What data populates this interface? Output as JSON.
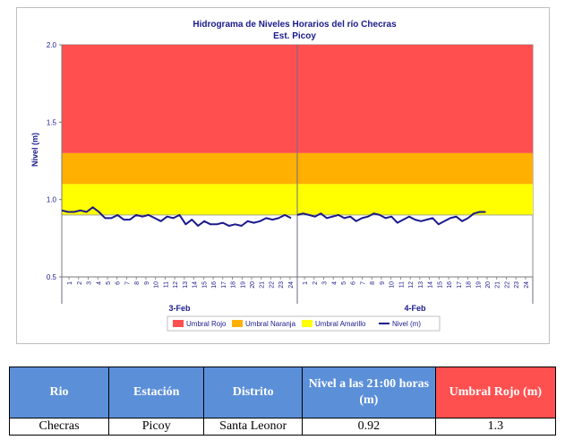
{
  "chart_data": {
    "type": "line",
    "title": "Hidrograma de Niveles Horarios del río Checras",
    "subtitle": "Est. Picoy",
    "ylabel": "Nivel (m)",
    "xlabel": "",
    "ylim": [
      0.5,
      2.0
    ],
    "yticks": [
      "0.5",
      "1.0",
      "1.5",
      "2.0"
    ],
    "hour_ticks": [
      "1",
      "2",
      "3",
      "4",
      "5",
      "6",
      "7",
      "8",
      "9",
      "10",
      "11",
      "12",
      "13",
      "14",
      "15",
      "16",
      "17",
      "18",
      "19",
      "20",
      "21",
      "22",
      "23",
      "24"
    ],
    "days": [
      "3-Feb",
      "4-Feb"
    ],
    "thresholds": [
      {
        "name": "Umbral Rojo",
        "from": 1.3,
        "to": 2.0,
        "color": "#ff4f4f"
      },
      {
        "name": "Umbral Naranja",
        "from": 1.1,
        "to": 1.3,
        "color": "#ffb000"
      },
      {
        "name": "Umbral Amarillo",
        "from": 0.9,
        "to": 1.1,
        "color": "#ffff00"
      }
    ],
    "series": [
      {
        "name": "Nivel (m)",
        "color": "#1a1a8c",
        "values": [
          [
            0.93,
            0.92,
            0.92,
            0.93,
            0.92,
            0.95,
            0.92,
            0.88,
            0.88,
            0.9,
            0.87,
            0.87,
            0.9,
            0.89,
            0.9,
            0.88,
            0.86,
            0.89,
            0.88,
            0.9,
            0.84,
            0.87,
            0.83,
            0.86,
            0.84,
            0.84,
            0.85,
            0.83,
            0.84,
            0.83,
            0.86,
            0.85,
            0.86,
            0.88,
            0.87,
            0.88,
            0.9,
            0.88
          ],
          [
            0.9,
            0.91,
            0.9,
            0.89,
            0.91,
            0.88,
            0.89,
            0.9,
            0.88,
            0.89,
            0.86,
            0.88,
            0.89,
            0.91,
            0.9,
            0.88,
            0.89,
            0.85,
            0.87,
            0.89,
            0.87,
            0.86,
            0.87,
            0.88,
            0.84,
            0.86,
            0.88,
            0.89,
            0.86,
            0.88,
            0.91,
            0.92,
            0.92
          ]
        ]
      }
    ],
    "legend": [
      "Umbral Rojo",
      "Umbral Naranja",
      "Umbral Amarillo",
      "Nivel (m)"
    ],
    "legend_position": "bottom",
    "grid": false
  },
  "table": {
    "headers": [
      "Rio",
      "Estación",
      "Distrito",
      "Nivel a las 21:00 horas (m)",
      "Umbral Rojo (m)"
    ],
    "row": [
      "Checras",
      "Picoy",
      "Santa Leonor",
      "0.92",
      "1.3"
    ]
  },
  "colors": {
    "header_blue": "#5b8fd8",
    "header_red": "#ff5050"
  }
}
